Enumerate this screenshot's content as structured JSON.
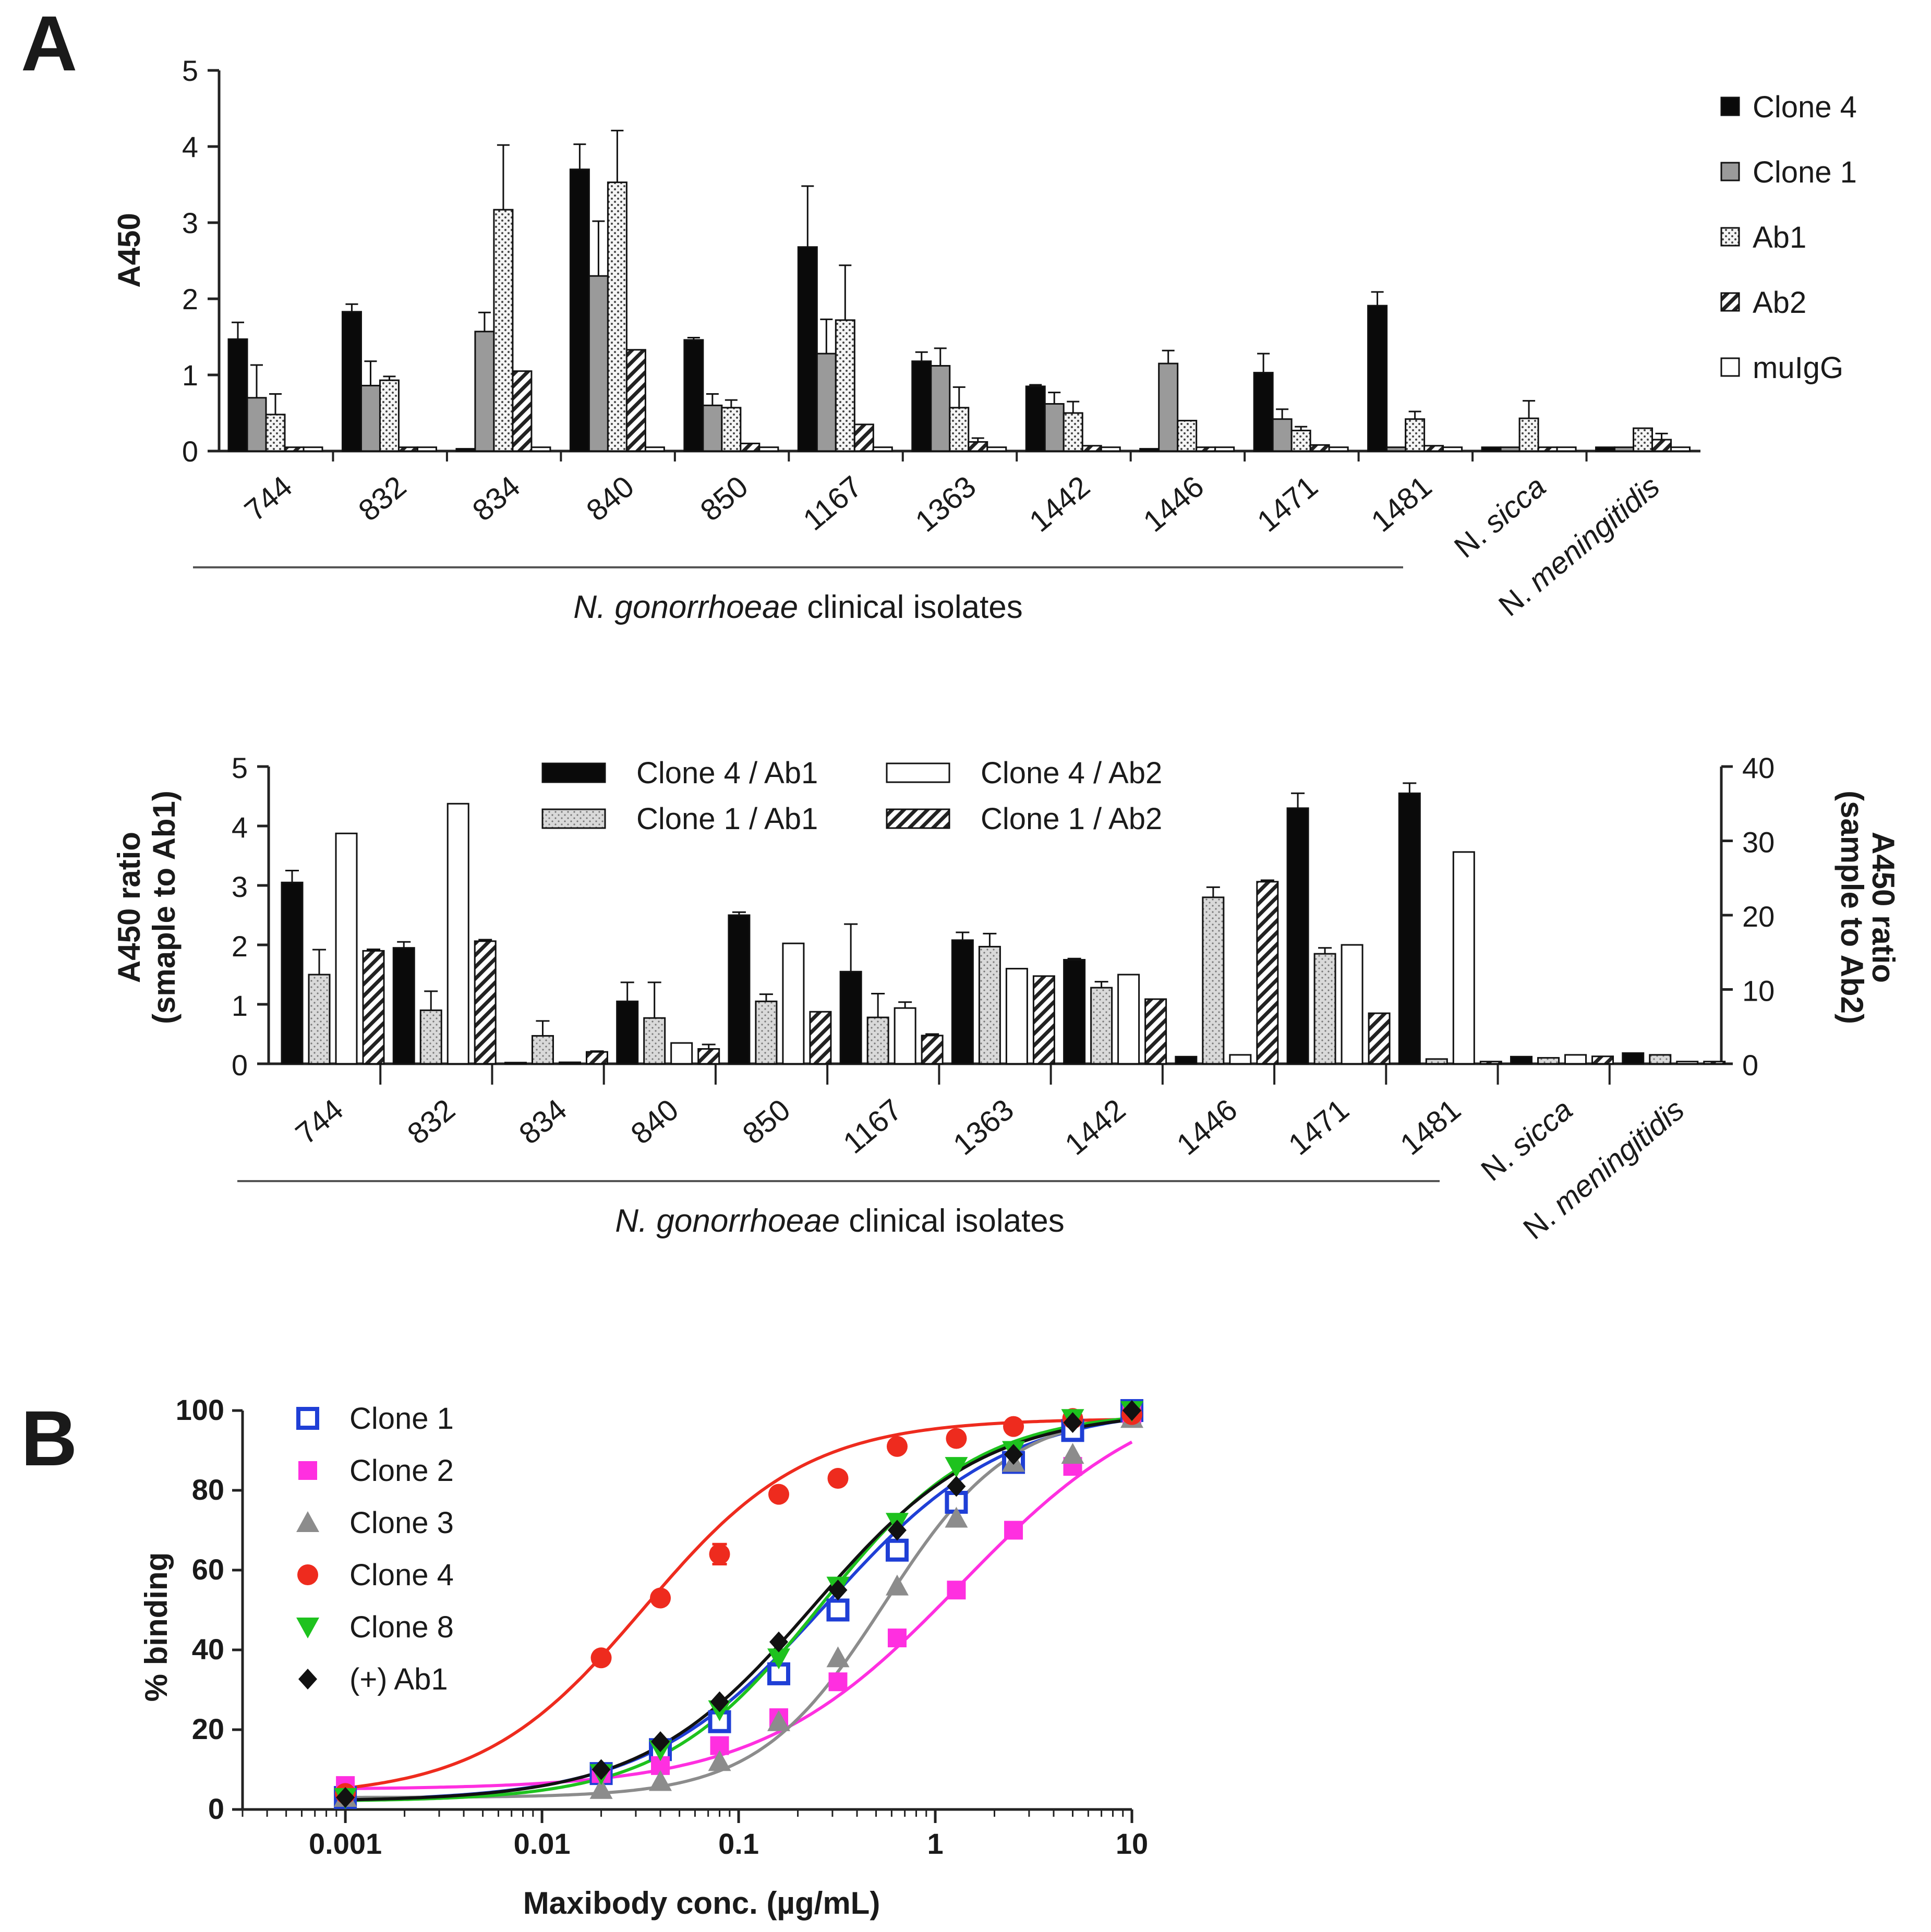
{
  "chart_data": [
    {
      "panel": "A",
      "type": "bar",
      "title": "",
      "ylabel": "A450",
      "ylim": [
        0,
        5
      ],
      "yticks": [
        "0",
        "1",
        "2",
        "3",
        "4",
        "5"
      ],
      "categories": [
        "744",
        "832",
        "834",
        "840",
        "850",
        "1167",
        "1363",
        "1442",
        "1446",
        "1471",
        "1481",
        "N. sicca",
        "N. meningitidis"
      ],
      "group_label": {
        "prefix": "N. gonorrhoeae",
        "suffix": " clinical isolates"
      },
      "series": [
        {
          "name": "Clone 4",
          "fill": "solid",
          "values": [
            1.47,
            1.83,
            0.03,
            3.7,
            1.46,
            2.68,
            1.18,
            0.85,
            0.03,
            1.03,
            1.91,
            0.05,
            0.05
          ],
          "errors": [
            0.22,
            0.1,
            0.0,
            0.33,
            0.03,
            0.8,
            0.12,
            0.02,
            0.0,
            0.25,
            0.18,
            0.0,
            0.0
          ]
        },
        {
          "name": "Clone 1",
          "fill": "gray",
          "values": [
            0.7,
            0.86,
            1.57,
            2.3,
            0.6,
            1.28,
            1.12,
            0.62,
            1.15,
            0.42,
            0.05,
            0.05,
            0.05
          ],
          "errors": [
            0.43,
            0.32,
            0.25,
            0.72,
            0.15,
            0.45,
            0.23,
            0.15,
            0.17,
            0.13,
            0.0,
            0.0,
            0.0
          ]
        },
        {
          "name": "Ab1",
          "fill": "dots",
          "values": [
            0.48,
            0.93,
            3.17,
            3.53,
            0.57,
            1.72,
            0.57,
            0.5,
            0.4,
            0.27,
            0.42,
            0.43,
            0.3
          ],
          "errors": [
            0.27,
            0.05,
            0.85,
            0.68,
            0.1,
            0.72,
            0.27,
            0.15,
            0.0,
            0.05,
            0.1,
            0.23,
            0.0
          ]
        },
        {
          "name": "Ab2",
          "fill": "hatch",
          "values": [
            0.05,
            0.05,
            1.05,
            1.33,
            0.1,
            0.35,
            0.12,
            0.07,
            0.05,
            0.08,
            0.07,
            0.05,
            0.15
          ],
          "errors": [
            0.0,
            0.0,
            0.0,
            0.0,
            0.0,
            0.0,
            0.05,
            0.0,
            0.0,
            0.0,
            0.0,
            0.0,
            0.08
          ]
        },
        {
          "name": "muIgG",
          "fill": "open",
          "values": [
            0.05,
            0.05,
            0.05,
            0.05,
            0.05,
            0.05,
            0.05,
            0.05,
            0.05,
            0.05,
            0.05,
            0.05,
            0.05
          ],
          "errors": [
            0,
            0,
            0,
            0,
            0,
            0,
            0,
            0,
            0,
            0,
            0,
            0,
            0
          ]
        }
      ]
    },
    {
      "panel": "A (ratio)",
      "type": "bar",
      "ylabel": "A450 ratio",
      "ylabel_sub": "(smaple to Ab1)",
      "y2label": "A450 ratio",
      "y2label_sub": "(sample to Ab2)",
      "ylim": [
        0,
        5
      ],
      "y2lim": [
        0,
        40
      ],
      "yticks": [
        "0",
        "1",
        "2",
        "3",
        "4",
        "5"
      ],
      "y2ticks": [
        "0",
        "10",
        "20",
        "30",
        "40"
      ],
      "categories": [
        "744",
        "832",
        "834",
        "840",
        "850",
        "1167",
        "1363",
        "1442",
        "1446",
        "1471",
        "1481",
        "N. sicca",
        "N. meningitidis"
      ],
      "group_label": {
        "prefix": "N. gonorrhoeae",
        "suffix": " clinical isolates"
      },
      "series": [
        {
          "name": "Clone 4 / Ab1",
          "axis": "left",
          "fill": "solid",
          "values": [
            3.05,
            1.95,
            0.02,
            1.05,
            2.5,
            1.55,
            2.08,
            1.75,
            0.12,
            4.3,
            4.55,
            0.12,
            0.18
          ],
          "errors": [
            0.2,
            0.1,
            0.0,
            0.32,
            0.05,
            0.8,
            0.13,
            0.02,
            0.0,
            0.25,
            0.17,
            0.0,
            0.0
          ]
        },
        {
          "name": "Clone 1 / Ab1",
          "axis": "left",
          "fill": "lightdots",
          "values": [
            1.5,
            0.9,
            0.47,
            0.77,
            1.05,
            0.78,
            1.97,
            1.28,
            2.8,
            1.85,
            0.08,
            0.1,
            0.15
          ],
          "errors": [
            0.42,
            0.32,
            0.25,
            0.6,
            0.12,
            0.4,
            0.22,
            0.1,
            0.17,
            0.1,
            0.0,
            0.0,
            0.0
          ]
        },
        {
          "name": "Clone 4 / Ab2",
          "axis": "right",
          "fill": "open",
          "values": [
            31,
            35,
            0.2,
            2.8,
            16.2,
            7.5,
            12.8,
            12,
            1.2,
            16,
            28.5,
            1.2,
            0.3
          ],
          "errors": [
            0,
            0,
            0,
            0,
            0,
            0.8,
            0,
            0,
            0,
            0,
            0,
            0,
            0
          ]
        },
        {
          "name": "Clone 1 / Ab2",
          "axis": "right",
          "fill": "hatch",
          "values": [
            15.2,
            16.5,
            1.6,
            2.0,
            7.0,
            3.8,
            11.8,
            8.7,
            24.5,
            6.8,
            0.3,
            1.0,
            0.3
          ],
          "errors": [
            0.2,
            0.2,
            0.1,
            0.6,
            0,
            0.2,
            0,
            0,
            0.2,
            0,
            0,
            0,
            0
          ]
        }
      ]
    },
    {
      "panel": "B",
      "type": "line",
      "xscale": "log",
      "xlabel": "Maxibody conc. (µg/mL)",
      "ylabel": "% binding",
      "xlim": [
        0.0003,
        10
      ],
      "ylim": [
        0,
        100
      ],
      "xticks": [
        "0.001",
        "0.01",
        "0.1",
        "1",
        "10"
      ],
      "yticks": [
        "0",
        "20",
        "40",
        "60",
        "80",
        "100"
      ],
      "x": [
        0.001,
        0.02,
        0.04,
        0.08,
        0.16,
        0.32,
        0.64,
        1.28,
        2.5,
        5,
        10
      ],
      "series": [
        {
          "name": "Clone 1",
          "color": "#1f3fd6",
          "marker": "open-square",
          "values": [
            3,
            9,
            15,
            22,
            34,
            50,
            65,
            77,
            87,
            95,
            100
          ],
          "fit": {
            "bottom": 2,
            "top": 101,
            "ec50": 0.28,
            "hill": 0.95
          }
        },
        {
          "name": "Clone 2",
          "color": "#ff2fe0",
          "marker": "square",
          "values": [
            6,
            9,
            11,
            16,
            23,
            32,
            43,
            55,
            70,
            86,
            99
          ],
          "fit": {
            "bottom": 5,
            "top": 108,
            "ec50": 1.35,
            "hill": 0.85
          }
        },
        {
          "name": "Clone 3",
          "color": "#8c8c8c",
          "marker": "triangle-up",
          "values": [
            3,
            5,
            7,
            12,
            22,
            38,
            56,
            73,
            87,
            89,
            98
          ],
          "fit": {
            "bottom": 3,
            "top": 100,
            "ec50": 0.55,
            "hill": 1.35
          }
        },
        {
          "name": "Clone 4",
          "color": "#ee2b1e",
          "marker": "circle",
          "values": [
            4,
            38,
            53,
            64,
            79,
            83,
            91,
            93,
            96,
            98,
            99
          ],
          "errors": [
            0,
            0,
            0,
            2.5,
            0,
            0,
            0,
            0,
            0,
            0,
            0
          ],
          "fit": {
            "bottom": 3,
            "top": 98,
            "ec50": 0.033,
            "hill": 1.05
          }
        },
        {
          "name": "Clone 8",
          "color": "#1ec21e",
          "marker": "triangle-down",
          "values": [
            3,
            9,
            15,
            25,
            38,
            56,
            72,
            86,
            90,
            98,
            100
          ],
          "fit": {
            "bottom": 2,
            "top": 100,
            "ec50": 0.26,
            "hill": 1.08
          }
        },
        {
          "name": "(+) Ab1",
          "color": "#111111",
          "marker": "diamond",
          "values": [
            3,
            10,
            17,
            27,
            42,
            55,
            70,
            81,
            89,
            97,
            100
          ],
          "fit": {
            "bottom": 2,
            "top": 100,
            "ec50": 0.24,
            "hill": 1.0
          }
        }
      ]
    }
  ]
}
